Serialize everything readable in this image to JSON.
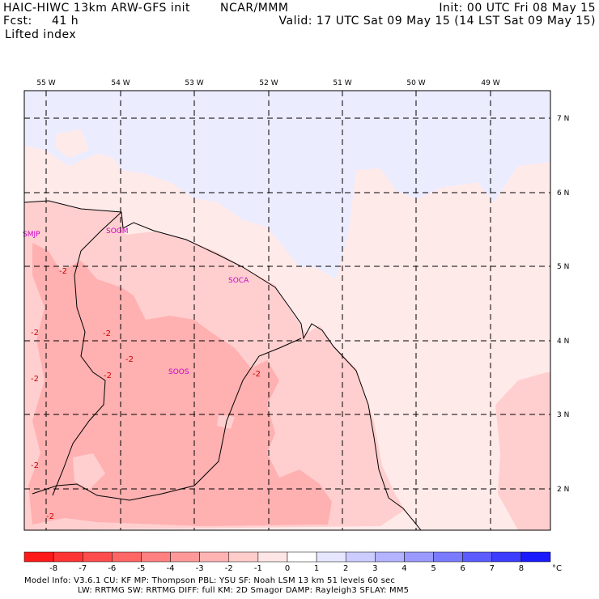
{
  "header": {
    "model": "HAIC-HIWC 13km ARW-GFS init",
    "org": "NCAR/MMM",
    "fcst_label": "Fcst:",
    "fcst_value": "41 h",
    "init": "Init: 00 UTC Fri 08 May 15",
    "valid": "Valid: 17 UTC Sat 09 May 15 (14 LST Sat 09 May 15)",
    "field": "Lifted index"
  },
  "map": {
    "lon_labels": [
      "55 W",
      "54 W",
      "53 W",
      "52 W",
      "51 W",
      "50 W",
      "49 W"
    ],
    "lat_labels": [
      "7 N",
      "6 N",
      "5 N",
      "4 N",
      "3 N",
      "2 N"
    ],
    "stations": [
      "SMJP",
      "SOGM",
      "SOCA",
      "SOOS"
    ],
    "contour_labels": [
      "-2",
      "-2",
      "-2",
      "-2",
      "-2",
      "-2",
      "-2",
      "-2",
      "-2",
      "-2"
    ]
  },
  "colorbar": {
    "ticks": [
      "-8",
      "-7",
      "-6",
      "-5",
      "-4",
      "-3",
      "-2",
      "-1",
      "0",
      "1",
      "2",
      "3",
      "4",
      "5",
      "6",
      "7",
      "8"
    ],
    "unit": "°C",
    "colors": [
      "#ff1a1a",
      "#ff3535",
      "#ff4d4d",
      "#ff6666",
      "#ff8080",
      "#ff9999",
      "#ffb3b3",
      "#ffcccc",
      "#ffe6e6",
      "#e6e6ff",
      "#ccccff",
      "#b3b3ff",
      "#9999ff",
      "#7a7aff",
      "#5c5cff",
      "#3d3dff",
      "#1a1aff"
    ]
  },
  "footer": {
    "line1": "Model Info: V3.6.1     CU: KF       MP: Thompson      PBL: YSU       SF: Noah LSM     13 km    51 levels   60 sec",
    "line2": "LW: RRTMG    SW: RRTMG   DIFF: full    KM: 2D Smagor DAMP: Rayleigh3   SFLAY: MM5"
  },
  "colors": {
    "station": "#cc00cc",
    "contour_label": "#cc0000",
    "cold_fill": "#ececff",
    "zero_fill": "#ffeaea",
    "minus1_fill": "#ffcfcf",
    "minus2_fill": "#ffb0b0"
  }
}
